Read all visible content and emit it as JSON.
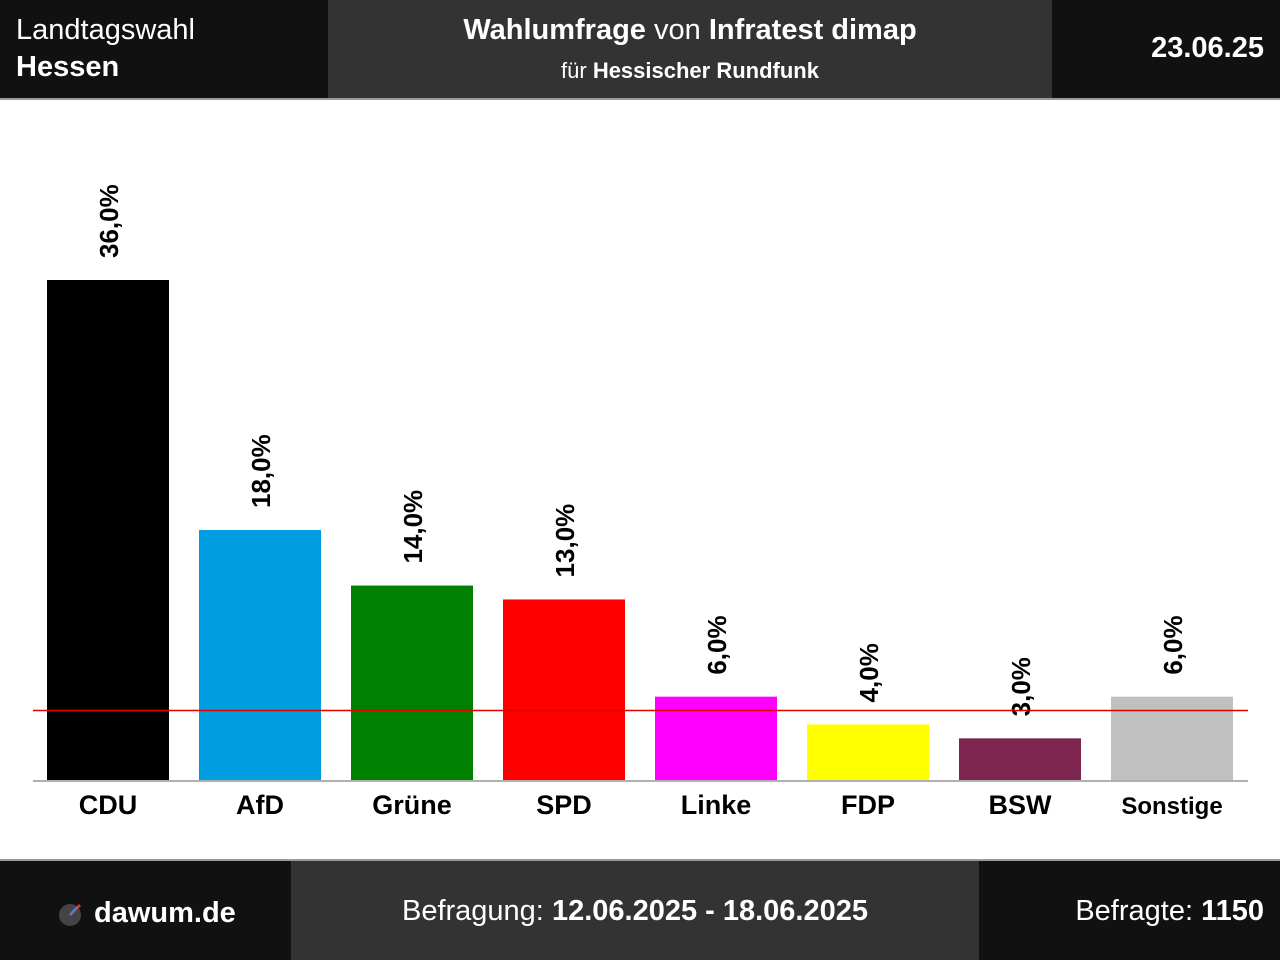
{
  "header": {
    "election_type": "Landtagswahl",
    "region": "Hessen",
    "title_prefix": "Wahlumfrage",
    "title_connector": "von",
    "institute": "Infratest dimap",
    "client_prefix": "für",
    "client": "Hessischer Rundfunk",
    "date": "23.06.25"
  },
  "footer": {
    "brand": "dawum.de",
    "brand_icon": "dawum-logo-icon",
    "period_label": "Befragung:",
    "period_value": "12.06.2025 - 18.06.2025",
    "respondents_label": "Befragte:",
    "respondents_value": "1150"
  },
  "chart_data": {
    "type": "bar",
    "categories": [
      "CDU",
      "AfD",
      "Grüne",
      "SPD",
      "Linke",
      "FDP",
      "BSW",
      "Sonstige"
    ],
    "values": [
      36.0,
      18.0,
      14.0,
      13.0,
      6.0,
      4.0,
      3.0,
      6.0
    ],
    "value_labels": [
      "36,0%",
      "18,0%",
      "14,0%",
      "13,0%",
      "6,0%",
      "4,0%",
      "3,0%",
      "6,0%"
    ],
    "colors": [
      "#000000",
      "#009ee0",
      "#008000",
      "#ff0000",
      "#ff00ff",
      "#ffff00",
      "#7d254f",
      "#c0c0c0"
    ],
    "threshold": 5.0,
    "threshold_color": "#e00000",
    "ylim": [
      0,
      40
    ],
    "grid": false,
    "legend": "none"
  }
}
